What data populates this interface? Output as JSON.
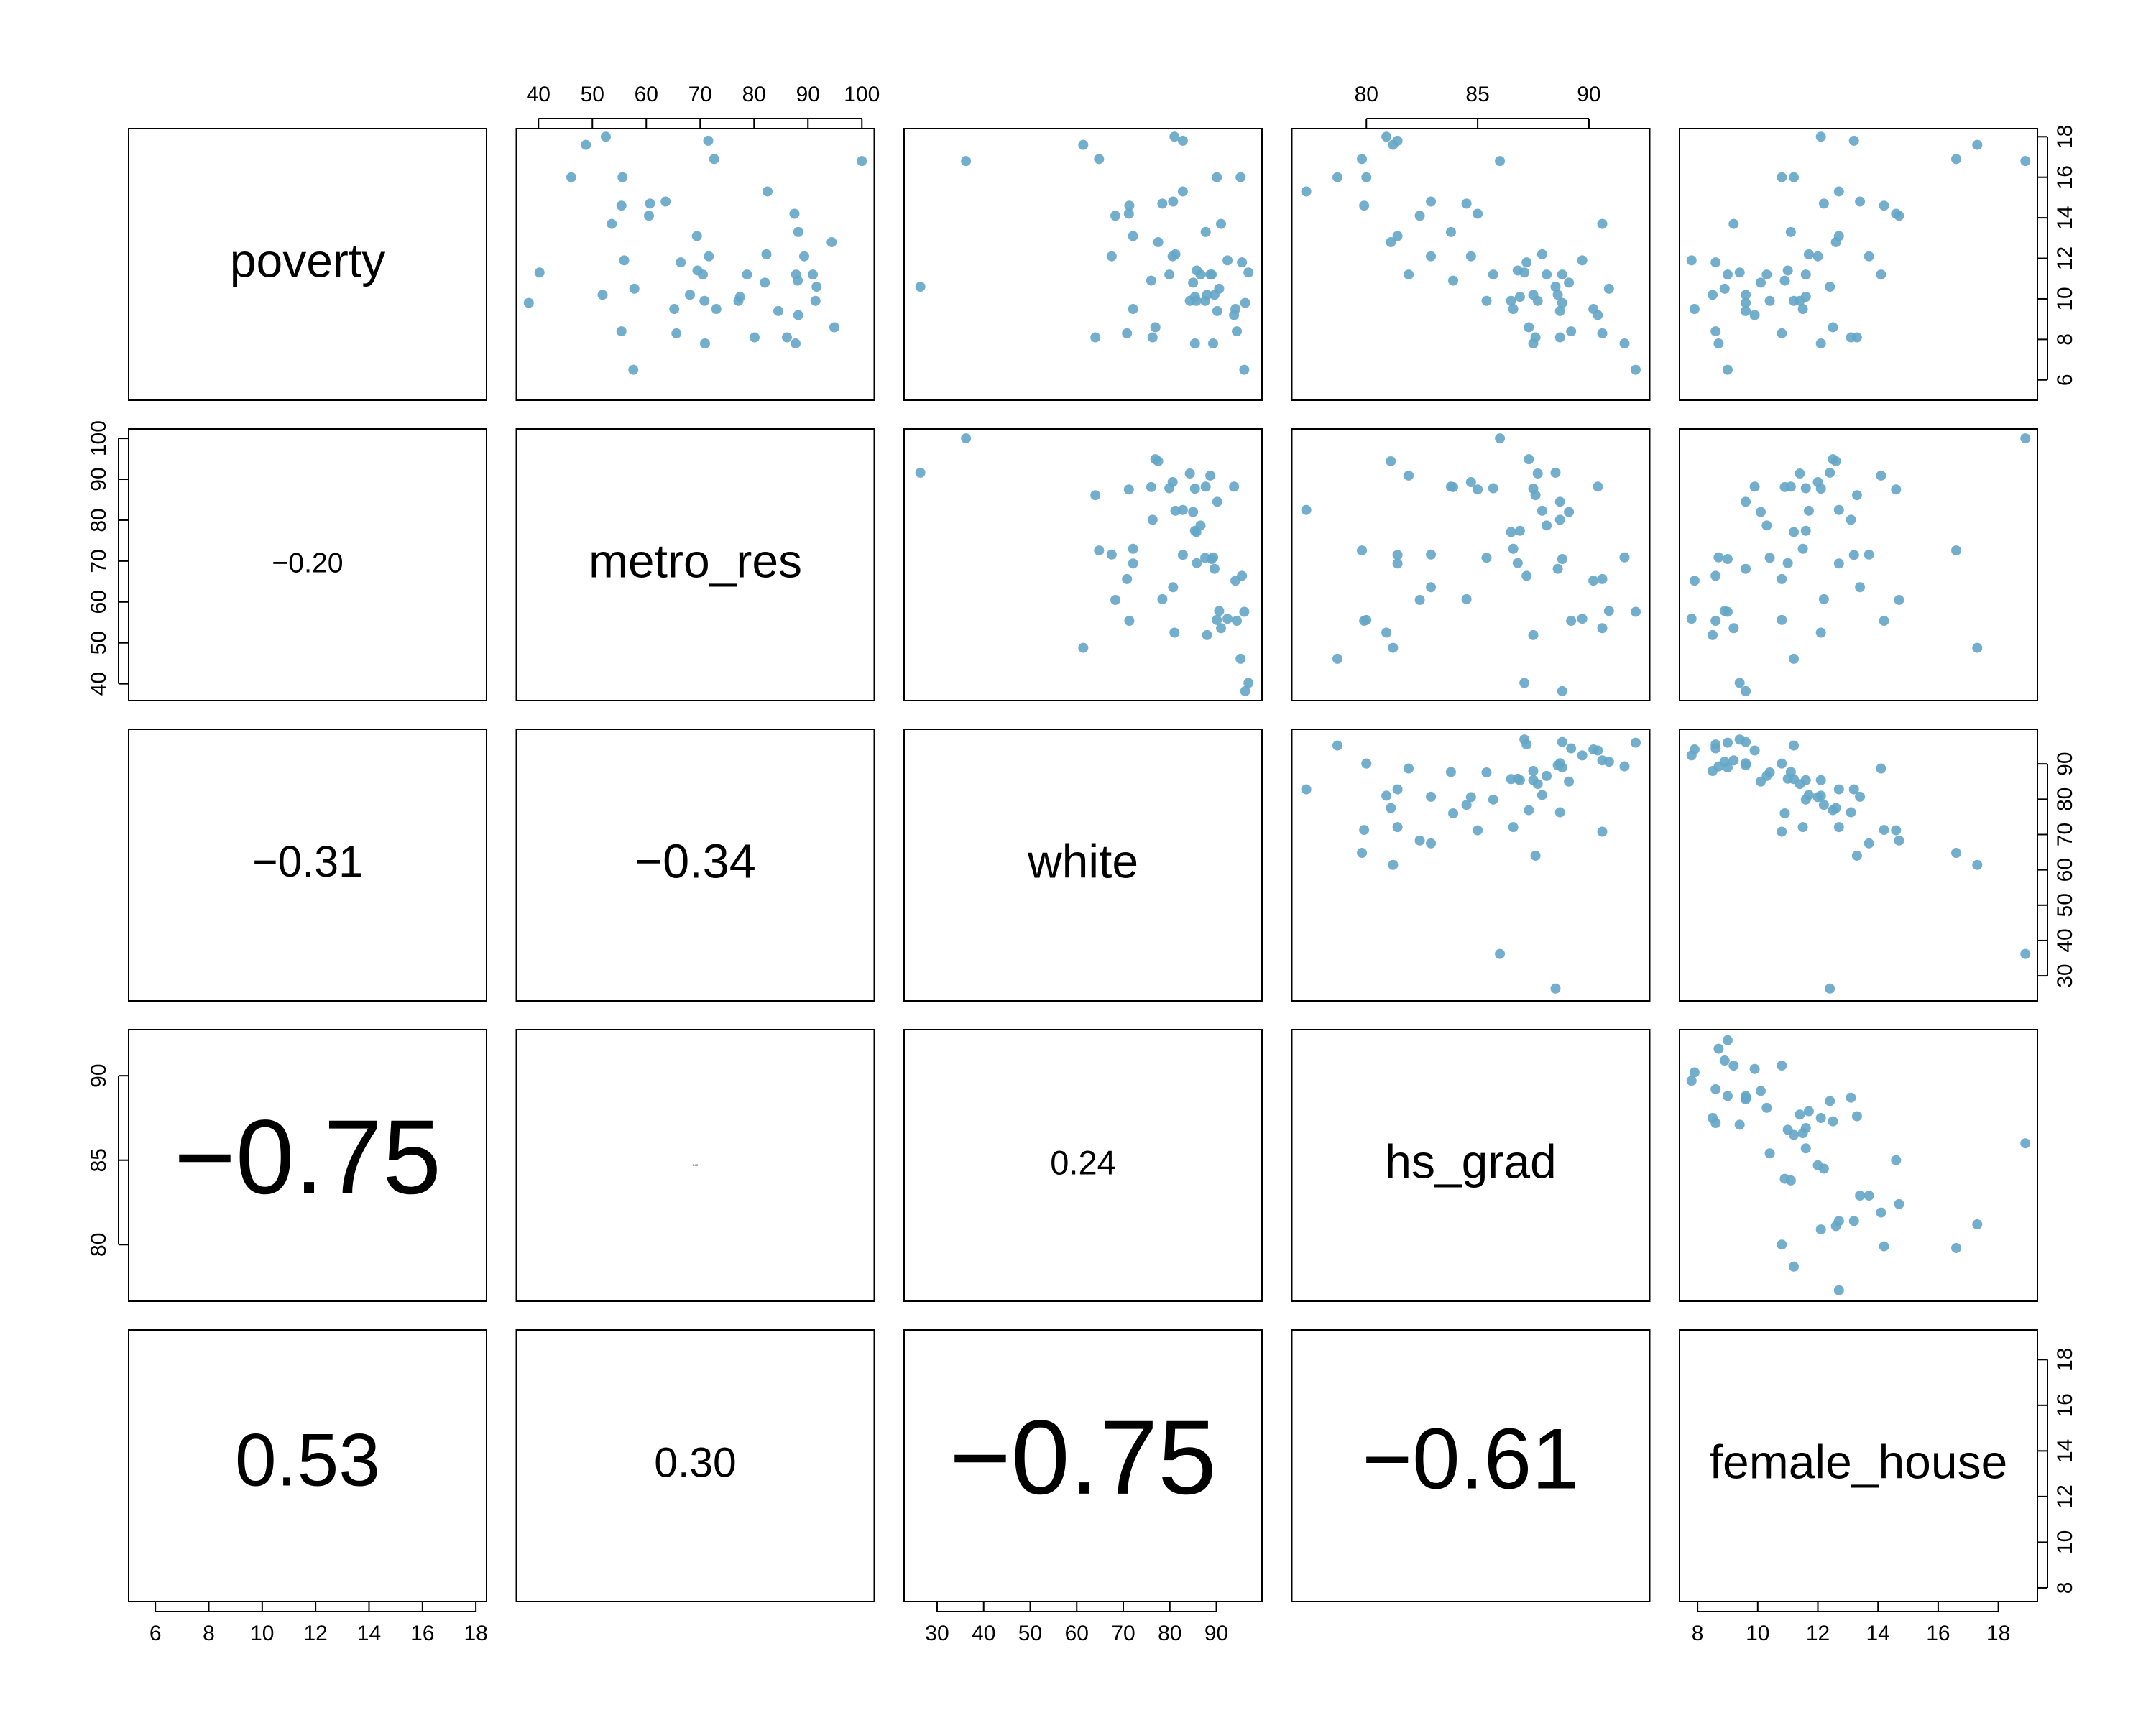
{
  "chart_data": {
    "type": "scatter_matrix",
    "color": "#64a6c6",
    "variables": [
      {
        "name": "poverty",
        "lim": [
          5.0,
          18.4
        ],
        "ticks": [
          6,
          8,
          10,
          12,
          14,
          16,
          18
        ],
        "values": [
          14.6,
          8.3,
          13.3,
          18.0,
          12.8,
          9.4,
          7.8,
          8.1,
          16.8,
          12.1,
          12.1,
          10.6,
          11.8,
          11.2,
          9.9,
          8.4,
          11.2,
          16.0,
          16.9,
          11.3,
          8.1,
          9.9,
          12.2,
          7.8,
          17.6,
          11.4,
          13.7,
          10.5,
          10.9,
          6.5,
          8.6,
          17.8,
          14.2,
          13.1,
          11.9,
          10.1,
          14.7,
          11.2,
          9.9,
          11.2,
          14.1,
          10.2,
          14.8,
          15.3,
          9.2,
          9.8,
          9.5,
          10.8,
          16.0,
          10.2,
          9.5
        ]
      },
      {
        "name": "metro_res",
        "lim": [
          35.9,
          102.3
        ],
        "ticks": [
          40,
          50,
          60,
          70,
          80,
          90,
          100
        ],
        "values": [
          55.4,
          65.6,
          88.2,
          52.5,
          94.4,
          84.5,
          87.7,
          80.1,
          100.0,
          89.3,
          71.6,
          91.6,
          66.4,
          87.8,
          70.8,
          55.4,
          70.5,
          55.6,
          72.6,
          40.2,
          86.1,
          91.4,
          82.3,
          70.9,
          48.8,
          69.5,
          53.6,
          57.8,
          88.1,
          57.6,
          94.9,
          71.5,
          87.5,
          69.4,
          55.9,
          77.4,
          60.7,
          78.7,
          77.1,
          90.9,
          60.5,
          51.9,
          63.6,
          82.5,
          88.2,
          38.2,
          73.0,
          82.0,
          46.1,
          68.1,
          65.2
        ]
      },
      {
        "name": "white",
        "lim": [
          22.9,
          99.8
        ],
        "ticks": [
          30,
          40,
          50,
          60,
          70,
          80,
          90
        ],
        "values": [
          71.3,
          70.8,
          87.7,
          81.0,
          77.5,
          90.2,
          85.4,
          76.3,
          36.2,
          80.6,
          67.5,
          26.4,
          95.5,
          79.9,
          87.6,
          94.4,
          89.0,
          90.1,
          64.8,
          96.9,
          64.0,
          84.3,
          81.2,
          89.3,
          61.4,
          85.8,
          91.0,
          90.6,
          76.0,
          96.0,
          76.9,
          82.8,
          71.2,
          72.1,
          92.4,
          85.4,
          78.4,
          86.6,
          85.7,
          88.7,
          68.3,
          88.0,
          80.7,
          82.8,
          93.8,
          96.2,
          72.1,
          85.0,
          95.2,
          89.6,
          94.1
        ]
      },
      {
        "name": "hs_grad",
        "lim": [
          76.65,
          92.73
        ],
        "ticks": [
          80,
          85,
          90
        ],
        "values": [
          79.9,
          90.6,
          83.8,
          80.9,
          81.1,
          88.7,
          87.5,
          88.7,
          86.0,
          84.7,
          82.9,
          88.5,
          87.2,
          85.7,
          85.4,
          89.2,
          88.8,
          80.0,
          79.8,
          87.1,
          87.6,
          87.7,
          87.9,
          91.6,
          81.2,
          86.8,
          90.6,
          90.9,
          83.9,
          92.1,
          87.3,
          81.4,
          85.0,
          81.4,
          89.7,
          86.9,
          84.5,
          88.1,
          86.5,
          81.9,
          82.4,
          87.5,
          82.9,
          77.3,
          90.4,
          88.8,
          86.6,
          89.1,
          78.7,
          88.6,
          90.2
        ]
      },
      {
        "name": "female_house",
        "lim": [
          7.4,
          19.3
        ],
        "ticks": [
          8,
          10,
          12,
          14,
          16,
          18
        ],
        "values": [
          14.2,
          10.8,
          11.1,
          12.1,
          12.6,
          9.6,
          12.1,
          13.1,
          18.9,
          12.0,
          13.7,
          12.4,
          8.6,
          11.6,
          10.4,
          8.6,
          9.0,
          10.8,
          16.6,
          9.4,
          13.3,
          11.4,
          11.7,
          8.7,
          17.3,
          11.0,
          9.2,
          8.9,
          10.9,
          9.0,
          12.5,
          13.2,
          14.6,
          12.7,
          7.8,
          11.6,
          12.2,
          10.3,
          11.2,
          14.1,
          14.7,
          8.5,
          13.4,
          12.7,
          9.9,
          9.6,
          11.5,
          10.1,
          11.2,
          9.6,
          7.9
        ]
      }
    ],
    "correlations": [
      [
        {
          "value": -0.2,
          "label": "−0.20"
        }
      ],
      [
        {
          "value": -0.31,
          "label": "−0.31"
        },
        {
          "value": -0.34,
          "label": "−0.34"
        }
      ],
      [
        {
          "value": -0.75,
          "label": "−0.75"
        },
        0.02,
        0.24
      ],
      [
        0.53,
        {
          "value": 0.3,
          "label": "0.30"
        },
        {
          "value": -0.75,
          "label": "−0.75"
        },
        {
          "value": -0.61,
          "label": "−0.61"
        }
      ]
    ]
  }
}
